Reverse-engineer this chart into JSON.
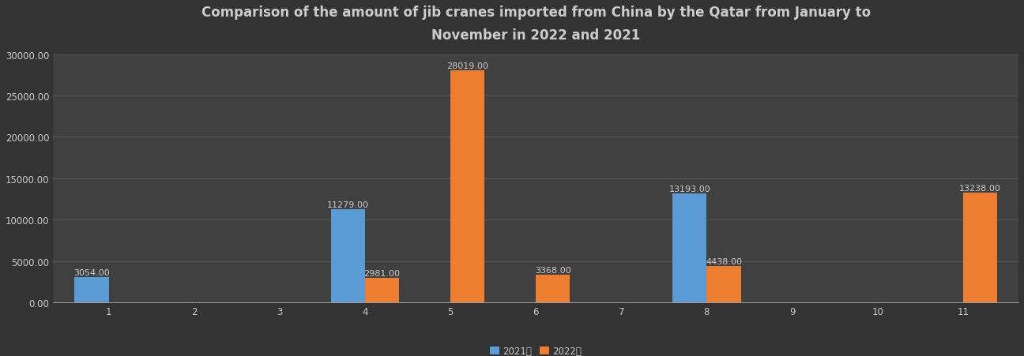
{
  "title": "Comparison of the amount of jib cranes imported from China by the Qatar from January to\nNovember in 2022 and 2021",
  "months": [
    1,
    2,
    3,
    4,
    5,
    6,
    7,
    8,
    9,
    10,
    11
  ],
  "data_2021": [
    3054.0,
    0,
    0,
    11279.0,
    0,
    0,
    0,
    13193.0,
    0,
    0,
    0
  ],
  "data_2022": [
    0,
    0,
    0,
    2981.0,
    28019.0,
    3368.0,
    0,
    4438.0,
    0,
    0,
    13238.0
  ],
  "color_2021": "#5B9BD5",
  "color_2022": "#ED7D31",
  "label_2021": "2021年",
  "label_2022": "2022年",
  "background_color": "#333333",
  "plot_area_color": "#404040",
  "grid_color": "#585858",
  "text_color": "#CCCCCC",
  "ylim": [
    0,
    30000
  ],
  "yticks": [
    0,
    5000,
    10000,
    15000,
    20000,
    25000,
    30000
  ],
  "bar_width": 0.4,
  "title_fontsize": 12,
  "tick_fontsize": 8.5,
  "label_fontsize": 8
}
